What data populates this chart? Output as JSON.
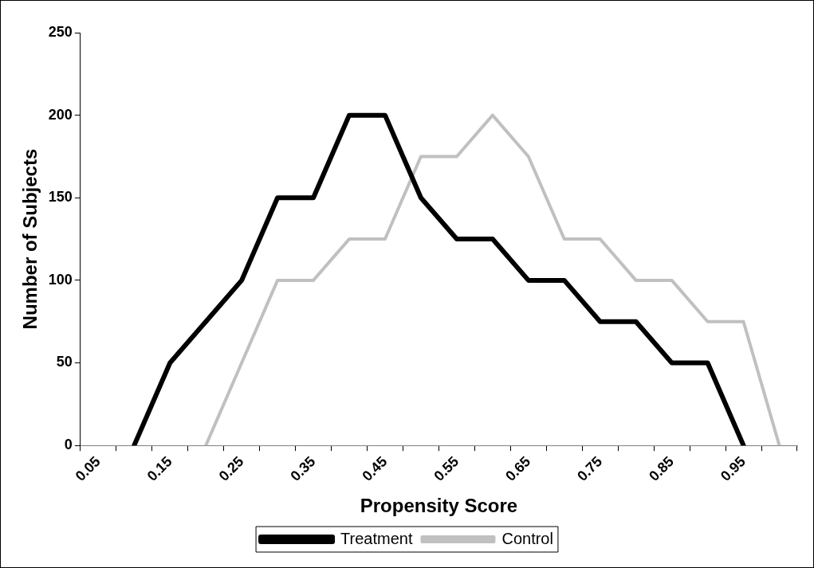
{
  "chart_data": {
    "type": "line",
    "xlabel": "Propensity Score",
    "ylabel": "Number of Subjects",
    "categories": [
      "0.05",
      null,
      "0.15",
      null,
      "0.25",
      null,
      "0.35",
      null,
      "0.45",
      null,
      "0.55",
      null,
      "0.65",
      null,
      "0.75",
      null,
      "0.85",
      null,
      "0.95",
      null
    ],
    "series": [
      {
        "name": "Treatment",
        "color": "#000000",
        "values": [
          null,
          0,
          50,
          75,
          100,
          150,
          150,
          200,
          200,
          150,
          125,
          125,
          100,
          100,
          75,
          75,
          50,
          50,
          0,
          null
        ]
      },
      {
        "name": "Control",
        "color": "#c0c0c0",
        "values": [
          null,
          null,
          null,
          0,
          50,
          100,
          100,
          125,
          125,
          175,
          175,
          200,
          175,
          125,
          125,
          100,
          100,
          75,
          75,
          0
        ]
      }
    ],
    "ylim": [
      0,
      250
    ],
    "yticks": [
      0,
      50,
      100,
      150,
      200,
      250
    ],
    "grid": false,
    "legend": "bottom",
    "marker": "none",
    "line_style": "solid"
  }
}
